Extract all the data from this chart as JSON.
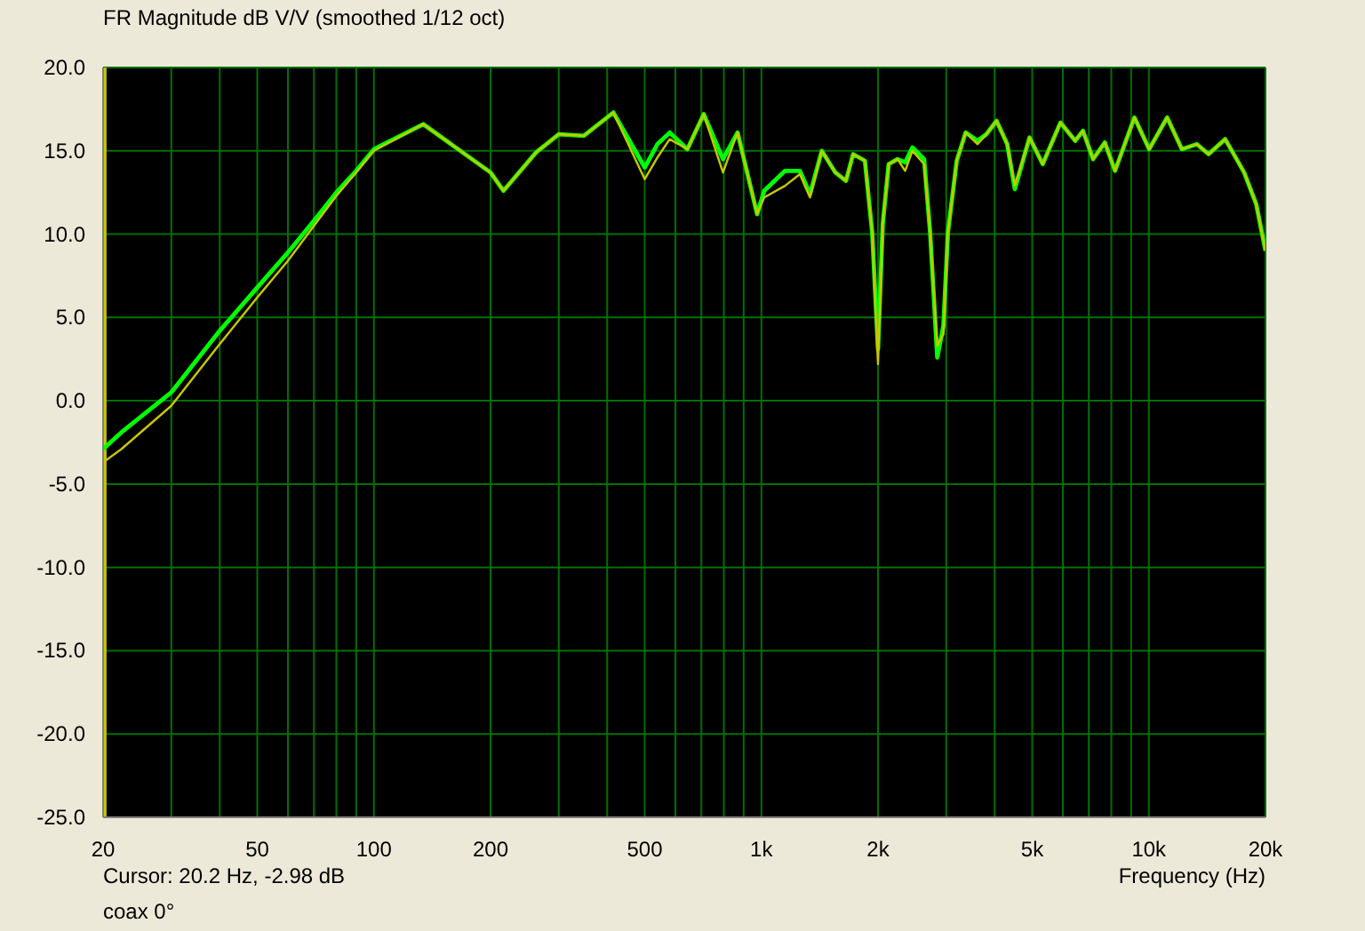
{
  "chart_data": {
    "type": "line",
    "title": "FR Magnitude dB V/V (smoothed 1/12 oct)",
    "xlabel": "Frequency (Hz)",
    "annotations": [
      "Cursor: 20.2 Hz, -2.98 dB",
      "coax 0°"
    ],
    "log": "x",
    "grid": true,
    "legend": false,
    "marker": "none",
    "line_style": "solid",
    "x": [
      20,
      22.3,
      30,
      40,
      50,
      60,
      70,
      80,
      90,
      100,
      134,
      200,
      216,
      262,
      300,
      348,
      415,
      500,
      539,
      580,
      644,
      710,
      796,
      868,
      975,
      1017,
      1151,
      1257,
      1335,
      1432,
      1552,
      1653,
      1725,
      1850,
      1932,
      2000,
      2057,
      2131,
      2246,
      2350,
      2453,
      2630,
      2726,
      2844,
      2950,
      3030,
      3193,
      3367,
      3614,
      3810,
      4045,
      4310,
      4510,
      4922,
      5322,
      5915,
      6456,
      6760,
      7180,
      7700,
      8180,
      9180,
      10020,
      11150,
      12170,
      13300,
      14260,
      15740,
      17620,
      18930,
      20000
    ],
    "series": [
      {
        "color": "#00ff00",
        "values": [
          -2.9,
          -1.9,
          0.5,
          4.2,
          6.8,
          8.9,
          10.8,
          12.5,
          13.8,
          15.1,
          16.6,
          13.7,
          12.6,
          14.9,
          16.0,
          15.9,
          17.3,
          14.0,
          15.4,
          16.1,
          15.1,
          17.2,
          14.5,
          16.1,
          11.2,
          12.6,
          13.8,
          13.8,
          12.4,
          15.0,
          13.7,
          13.2,
          14.8,
          14.4,
          10.1,
          3.1,
          10.6,
          14.2,
          14.5,
          14.3,
          15.2,
          14.5,
          10.1,
          2.6,
          4.5,
          10.1,
          14.4,
          16.1,
          15.6,
          16.0,
          16.8,
          15.4,
          12.7,
          15.8,
          14.2,
          16.7,
          15.6,
          16.2,
          14.5,
          15.5,
          13.8,
          17.0,
          15.1,
          17.0,
          15.1,
          15.4,
          14.8,
          15.7,
          13.7,
          11.8,
          9.0
        ]
      },
      {
        "color": "#c8c800",
        "values": [
          -3.7,
          -2.9,
          -0.3,
          3.4,
          6.2,
          8.4,
          10.5,
          12.3,
          13.7,
          15.0,
          16.6,
          13.7,
          12.6,
          14.9,
          16.0,
          15.9,
          17.3,
          13.3,
          14.6,
          15.7,
          15.1,
          17.2,
          13.7,
          16.1,
          11.2,
          12.2,
          12.9,
          13.6,
          12.2,
          15.0,
          13.7,
          13.2,
          14.8,
          14.4,
          10.1,
          2.2,
          10.6,
          14.2,
          14.5,
          13.8,
          15.0,
          14.2,
          10.1,
          3.3,
          4.0,
          10.1,
          14.4,
          16.1,
          15.4,
          16.0,
          16.8,
          15.4,
          12.9,
          15.8,
          14.2,
          16.7,
          15.6,
          16.2,
          14.5,
          15.5,
          13.8,
          17.0,
          15.1,
          17.0,
          15.1,
          15.4,
          14.8,
          15.7,
          13.7,
          11.8,
          9.0
        ]
      }
    ],
    "xlim": [
      20,
      20000
    ],
    "xticks": [
      20,
      {
        "value": 30,
        "label": null
      },
      {
        "value": 40,
        "label": null
      },
      50,
      {
        "value": 60,
        "label": null
      },
      {
        "value": 70,
        "label": null
      },
      {
        "value": 80,
        "label": null
      },
      {
        "value": 90,
        "label": null
      },
      100,
      200,
      {
        "value": 300,
        "label": null
      },
      {
        "value": 400,
        "label": null
      },
      500,
      {
        "value": 600,
        "label": null
      },
      {
        "value": 700,
        "label": null
      },
      {
        "value": 800,
        "label": null
      },
      {
        "value": 900,
        "label": null
      },
      {
        "value": 1000,
        "label": "1k"
      },
      {
        "value": 2000,
        "label": "2k"
      },
      {
        "value": 3000,
        "label": null
      },
      {
        "value": 4000,
        "label": null
      },
      {
        "value": 5000,
        "label": "5k"
      },
      {
        "value": 6000,
        "label": null
      },
      {
        "value": 7000,
        "label": null
      },
      {
        "value": 8000,
        "label": null
      },
      {
        "value": 9000,
        "label": null
      },
      {
        "value": 10000,
        "label": "10k"
      },
      {
        "value": 20000,
        "label": "20k"
      }
    ],
    "ylim": [
      -25,
      20
    ],
    "yticks": [
      {
        "value": -25,
        "label": "-25.0"
      },
      {
        "value": -20,
        "label": "-20.0"
      },
      {
        "value": -15,
        "label": "-15.0"
      },
      {
        "value": -10,
        "label": "-10.0"
      },
      {
        "value": -5,
        "label": "-5.0"
      },
      {
        "value": 0,
        "label": "0.0"
      },
      {
        "value": 5,
        "label": "5.0"
      },
      {
        "value": 10,
        "label": "10.0"
      },
      {
        "value": 15,
        "label": "15.0"
      },
      {
        "value": 20,
        "label": "20.0"
      }
    ],
    "ref_lines": [
      {
        "axis": "x",
        "value": 20.2,
        "color": "#c8c800"
      }
    ]
  }
}
